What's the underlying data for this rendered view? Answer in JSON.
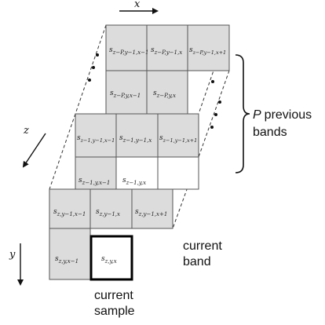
{
  "axes": {
    "x": "x",
    "z": "z",
    "y": "y"
  },
  "cells": {
    "prev_p_y1_x1": "s",
    "prev_p_y1_x1_sub": "z−P,y−1,x−1",
    "prev_p_y1_x": "s",
    "prev_p_y1_x_sub": "z−P,y−1,x",
    "prev_p_y1_xp1": "s",
    "prev_p_y1_xp1_sub": "z−P,y−1,x+1",
    "prev_p_y_x1": "s",
    "prev_p_y_x1_sub": "z−P,y,x−1",
    "prev_p_y_x": "s",
    "prev_p_y_x_sub": "z−P,y,x",
    "prev_1_y1_x1": "s",
    "prev_1_y1_x1_sub": "z−1,y−1,x−1",
    "prev_1_y1_x": "s",
    "prev_1_y1_x_sub": "z−1,y−1,x",
    "prev_1_y1_xp1": "s",
    "prev_1_y1_xp1_sub": "z−1,y−1,x+1",
    "prev_1_y_x1": "s",
    "prev_1_y_x1_sub": "z−1,y,x−1",
    "prev_1_y_x": "s",
    "prev_1_y_x_sub": "z−1,y,x",
    "cur_y1_x1": "s",
    "cur_y1_x1_sub": "z,y−1,x−1",
    "cur_y1_x": "s",
    "cur_y1_x_sub": "z,y−1,x",
    "cur_y1_xp1": "s",
    "cur_y1_xp1_sub": "z,y−1,x+1",
    "cur_y_x1": "s",
    "cur_y_x1_sub": "z,y,x−1",
    "cur_y_x": "s",
    "cur_y_x_sub": "z,y,x"
  },
  "labels": {
    "p_letter": "P",
    "previous": "previous",
    "bands": "bands",
    "current_band_1": "current",
    "current_band_2": "band",
    "current_sample_1": "current",
    "current_sample_2": "sample"
  }
}
